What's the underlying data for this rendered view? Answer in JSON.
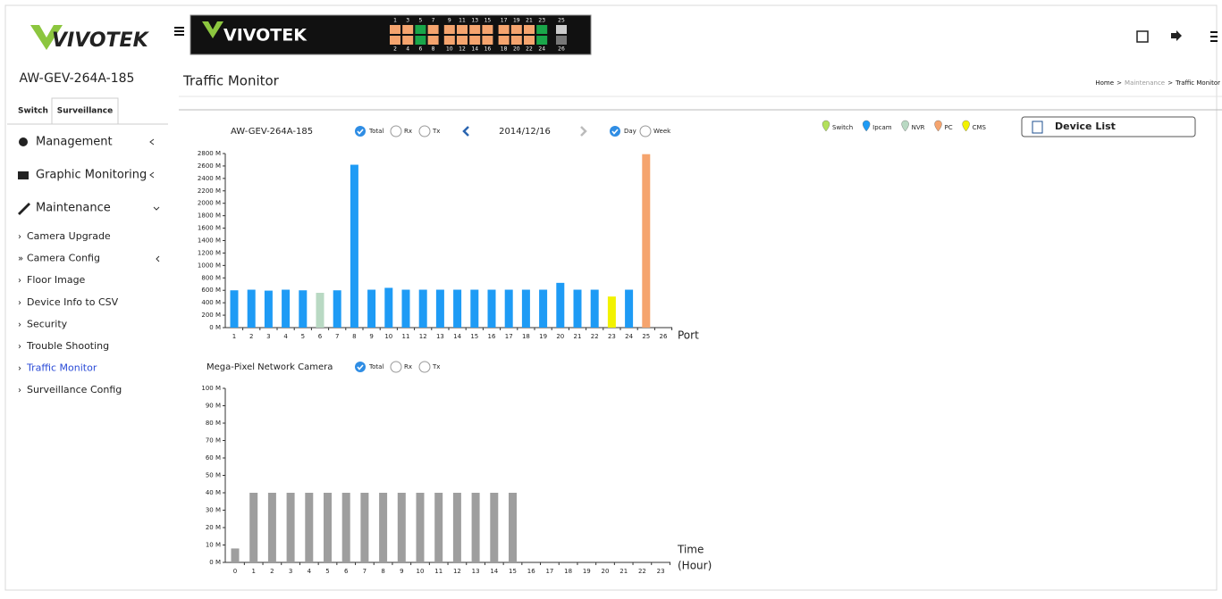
{
  "header": {
    "logo": "VIVOTEK",
    "device_name": "AW-GEV-264A-185",
    "page_title": "Traffic Monitor",
    "breadcrumb": [
      "Home",
      "Maintenance",
      "Traffic Monitor"
    ]
  },
  "port_panel": {
    "logo": "VIVOTEK",
    "top_ports": [
      "1",
      "3",
      "5",
      "7",
      "9",
      "11",
      "13",
      "15",
      "17",
      "19",
      "21",
      "23",
      "25"
    ],
    "bottom_ports": [
      "2",
      "4",
      "6",
      "8",
      "10",
      "12",
      "14",
      "16",
      "18",
      "20",
      "22",
      "24",
      "26"
    ]
  },
  "tabs": [
    "Switch",
    "Surveillance"
  ],
  "menu": [
    "Management",
    "Graphic Monitoring",
    "Maintenance"
  ],
  "submenu": [
    "Camera Upgrade",
    "Camera Config",
    "Floor Image",
    "Device Info to CSV",
    "Security",
    "Trouble Shooting",
    "Traffic Monitor",
    "Surveillance Config"
  ],
  "device_list": "Device List",
  "legend": [
    {
      "name": "Switch",
      "color": "#b2e05a"
    },
    {
      "name": "Ipcam",
      "color": "#1e9bf5"
    },
    {
      "name": "NVR",
      "color": "#b9d9c3"
    },
    {
      "name": "PC",
      "color": "#f5a46e"
    },
    {
      "name": "CMS",
      "color": "#f2f200"
    }
  ],
  "chart_data": [
    {
      "type": "bar",
      "title": "AW-GEV-264A-185",
      "options": [
        "Total",
        "Rx",
        "Tx"
      ],
      "date": "2014/12/16",
      "periods": [
        "Day",
        "Week"
      ],
      "xlabel": "Port",
      "categories": [
        "1",
        "2",
        "3",
        "4",
        "5",
        "6",
        "7",
        "8",
        "9",
        "10",
        "11",
        "12",
        "13",
        "14",
        "15",
        "16",
        "17",
        "18",
        "19",
        "20",
        "21",
        "22",
        "23",
        "24",
        "25",
        "26"
      ],
      "values": [
        600,
        610,
        595,
        610,
        600,
        560,
        600,
        2620,
        610,
        640,
        610,
        610,
        610,
        610,
        610,
        610,
        610,
        610,
        610,
        720,
        610,
        610,
        500,
        610,
        2790,
        null
      ],
      "colors": [
        "#1e9bf5",
        "#1e9bf5",
        "#1e9bf5",
        "#1e9bf5",
        "#1e9bf5",
        "#b9d9c3",
        "#1e9bf5",
        "#1e9bf5",
        "#1e9bf5",
        "#1e9bf5",
        "#1e9bf5",
        "#1e9bf5",
        "#1e9bf5",
        "#1e9bf5",
        "#1e9bf5",
        "#1e9bf5",
        "#1e9bf5",
        "#1e9bf5",
        "#1e9bf5",
        "#1e9bf5",
        "#1e9bf5",
        "#1e9bf5",
        "#f2f200",
        "#1e9bf5",
        "#f5a46e",
        "#1e9bf5"
      ],
      "ylim": [
        0,
        2800
      ],
      "yticks": [
        {
          "value": 0,
          "label": "0 M"
        },
        {
          "value": 200,
          "label": "200 M"
        },
        {
          "value": 400,
          "label": "400 M"
        },
        {
          "value": 600,
          "label": "600 M"
        },
        {
          "value": 800,
          "label": "800 M"
        },
        {
          "value": 1000,
          "label": "1000 M"
        },
        {
          "value": 1200,
          "label": "1200 M"
        },
        {
          "value": 1400,
          "label": "1400 M"
        },
        {
          "value": 1600,
          "label": "1600 M"
        },
        {
          "value": 1800,
          "label": "1800 M"
        },
        {
          "value": 2000,
          "label": "2000 M"
        },
        {
          "value": 2200,
          "label": "2200 M"
        },
        {
          "value": 2400,
          "label": "2400 M"
        },
        {
          "value": 2600,
          "label": "2600 M"
        },
        {
          "value": 2800,
          "label": "2800 M"
        }
      ]
    },
    {
      "type": "bar",
      "title": "Mega-Pixel Network Camera",
      "options": [
        "Total",
        "Rx",
        "Tx"
      ],
      "xlabel": [
        "Time",
        "(Hour)"
      ],
      "categories": [
        "0",
        "1",
        "2",
        "3",
        "4",
        "5",
        "6",
        "7",
        "8",
        "9",
        "10",
        "11",
        "12",
        "13",
        "14",
        "15",
        "16",
        "17",
        "18",
        "19",
        "20",
        "21",
        "22",
        "23"
      ],
      "values": [
        8,
        40,
        40,
        40,
        40,
        40,
        40,
        40,
        40,
        40,
        40,
        40,
        40,
        40,
        40,
        40,
        0,
        0,
        0,
        0,
        0,
        0,
        0,
        0
      ],
      "color": "#9e9e9e",
      "ylim": [
        0,
        100
      ],
      "yticks": [
        {
          "value": 0,
          "label": "0 M"
        },
        {
          "value": 10,
          "label": "10 M"
        },
        {
          "value": 20,
          "label": "20 M"
        },
        {
          "value": 30,
          "label": "30 M"
        },
        {
          "value": 40,
          "label": "40 M"
        },
        {
          "value": 50,
          "label": "50 M"
        },
        {
          "value": 60,
          "label": "60 M"
        },
        {
          "value": 70,
          "label": "70 M"
        },
        {
          "value": 80,
          "label": "80 M"
        },
        {
          "value": 90,
          "label": "90 M"
        },
        {
          "value": 100,
          "label": "100 M"
        }
      ]
    }
  ]
}
